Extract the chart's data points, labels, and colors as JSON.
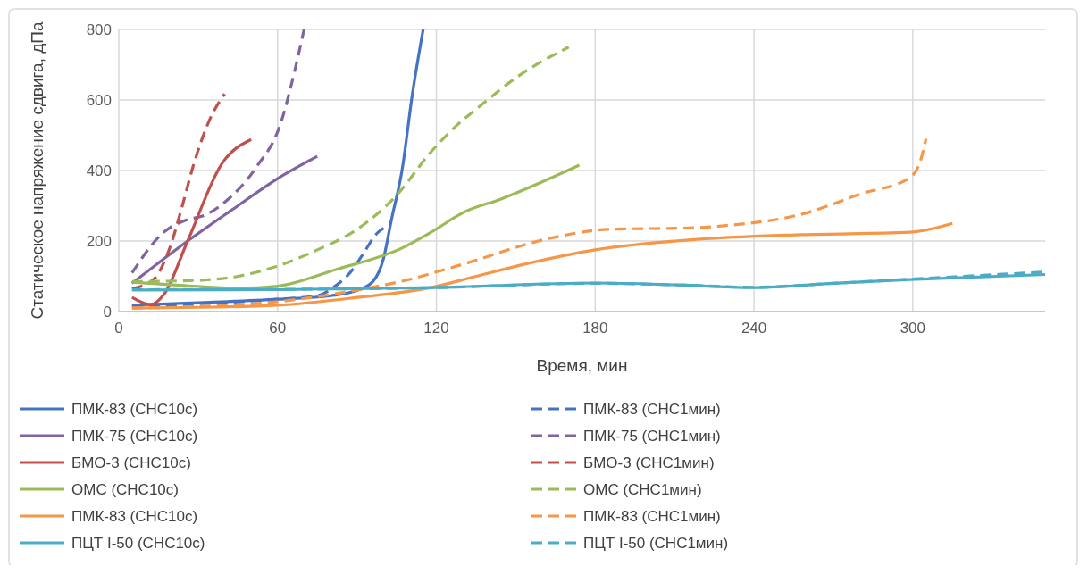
{
  "chart_data": {
    "type": "line",
    "xlabel": "Время, мин",
    "ylabel": "Статическое напряжение сдвига, дПа",
    "xlim": [
      0,
      350
    ],
    "xticks": [
      0,
      60,
      120,
      180,
      240,
      300
    ],
    "ylim": [
      0,
      800
    ],
    "yticks": [
      0,
      200,
      400,
      600,
      800
    ],
    "grid": true,
    "legend": "bottom",
    "series": [
      {
        "name": "ПМК-83 (СНС10с)",
        "color": "#4472c4",
        "line_style": "solid",
        "x": [
          5,
          30,
          60,
          80,
          90,
          96,
          100,
          103,
          107,
          111,
          115
        ],
        "values": [
          18,
          25,
          35,
          45,
          60,
          85,
          150,
          260,
          400,
          620,
          800
        ]
      },
      {
        "name": "ПМК-83 (СНС1мин)",
        "color": "#4472c4",
        "line_style": "dashed",
        "x": [
          5,
          30,
          60,
          75,
          81,
          88,
          92,
          98,
          101
        ],
        "values": [
          15,
          22,
          35,
          45,
          68,
          116,
          160,
          225,
          240
        ]
      },
      {
        "name": "ПМК-75 (СНС10с)",
        "color": "#8064a2",
        "line_style": "solid",
        "x": [
          5,
          26,
          45,
          60,
          75
        ],
        "values": [
          80,
          200,
          300,
          377,
          440
        ]
      },
      {
        "name": "ПМК-75 (СНС1мин)",
        "color": "#8064a2",
        "line_style": "dashed",
        "x": [
          5,
          17,
          25,
          33,
          40,
          52,
          61,
          67,
          70
        ],
        "values": [
          110,
          225,
          258,
          275,
          310,
          410,
          530,
          700,
          800
        ]
      },
      {
        "name": "БМО-3 (СНС10с)",
        "color": "#c0504d",
        "line_style": "solid",
        "x": [
          5,
          12,
          17,
          26,
          39,
          50
        ],
        "values": [
          40,
          20,
          48,
          200,
          420,
          488
        ]
      },
      {
        "name": "БМО-3 (СНС1мин)",
        "color": "#c0504d",
        "line_style": "dashed",
        "x": [
          5,
          13,
          19,
          24,
          28,
          35,
          40
        ],
        "values": [
          65,
          90,
          175,
          300,
          410,
          555,
          617
        ]
      },
      {
        "name": "ОМС (СНС10с)",
        "color": "#9bbb59",
        "line_style": "solid",
        "x": [
          5,
          22,
          45,
          60,
          82,
          107,
          118,
          131,
          144,
          174
        ],
        "values": [
          83,
          75,
          66,
          72,
          119,
          180,
          225,
          284,
          318,
          415
        ]
      },
      {
        "name": "ОМС (СНС1мин)",
        "color": "#9bbb59",
        "line_style": "dashed",
        "x": [
          5,
          28,
          45,
          60,
          75,
          90,
          105,
          118,
          128,
          136,
          152,
          170
        ],
        "values": [
          85,
          88,
          100,
          129,
          175,
          233,
          330,
          453,
          530,
          580,
          673,
          750
        ]
      },
      {
        "name": "ПМК-83 (СНС10с)",
        "color": "#f79646",
        "line_style": "solid",
        "x": [
          5,
          30,
          60,
          90,
          118,
          135,
          152,
          180,
          219,
          258,
          299,
          315
        ],
        "values": [
          10,
          12,
          18,
          40,
          68,
          100,
          132,
          175,
          205,
          218,
          225,
          250
        ]
      },
      {
        "name": "ПМК-83 (СНС1мин)",
        "color": "#f79646",
        "line_style": "dashed",
        "x": [
          5,
          30,
          60,
          90,
          107,
          129,
          163,
          185,
          219,
          228,
          258,
          281,
          299,
          303,
          305
        ],
        "values": [
          10,
          14,
          28,
          61,
          86,
          132,
          208,
          233,
          238,
          243,
          276,
          335,
          380,
          430,
          490
        ]
      },
      {
        "name": "ПЦТ I-50 (СНС10с)",
        "color": "#4bacc6",
        "line_style": "solid",
        "x": [
          5,
          60,
          120,
          180,
          210,
          239,
          270,
          299,
          350
        ],
        "values": [
          61,
          62,
          68,
          81,
          76,
          68,
          80,
          91,
          105
        ]
      },
      {
        "name": "ПЦТ I-50 (СНС1мин)",
        "color": "#4bacc6",
        "line_style": "dashed",
        "x": [
          5,
          60,
          120,
          180,
          210,
          239,
          270,
          299,
          350
        ],
        "values": [
          62,
          63,
          68,
          80,
          76,
          69,
          80,
          92,
          112
        ]
      }
    ]
  }
}
